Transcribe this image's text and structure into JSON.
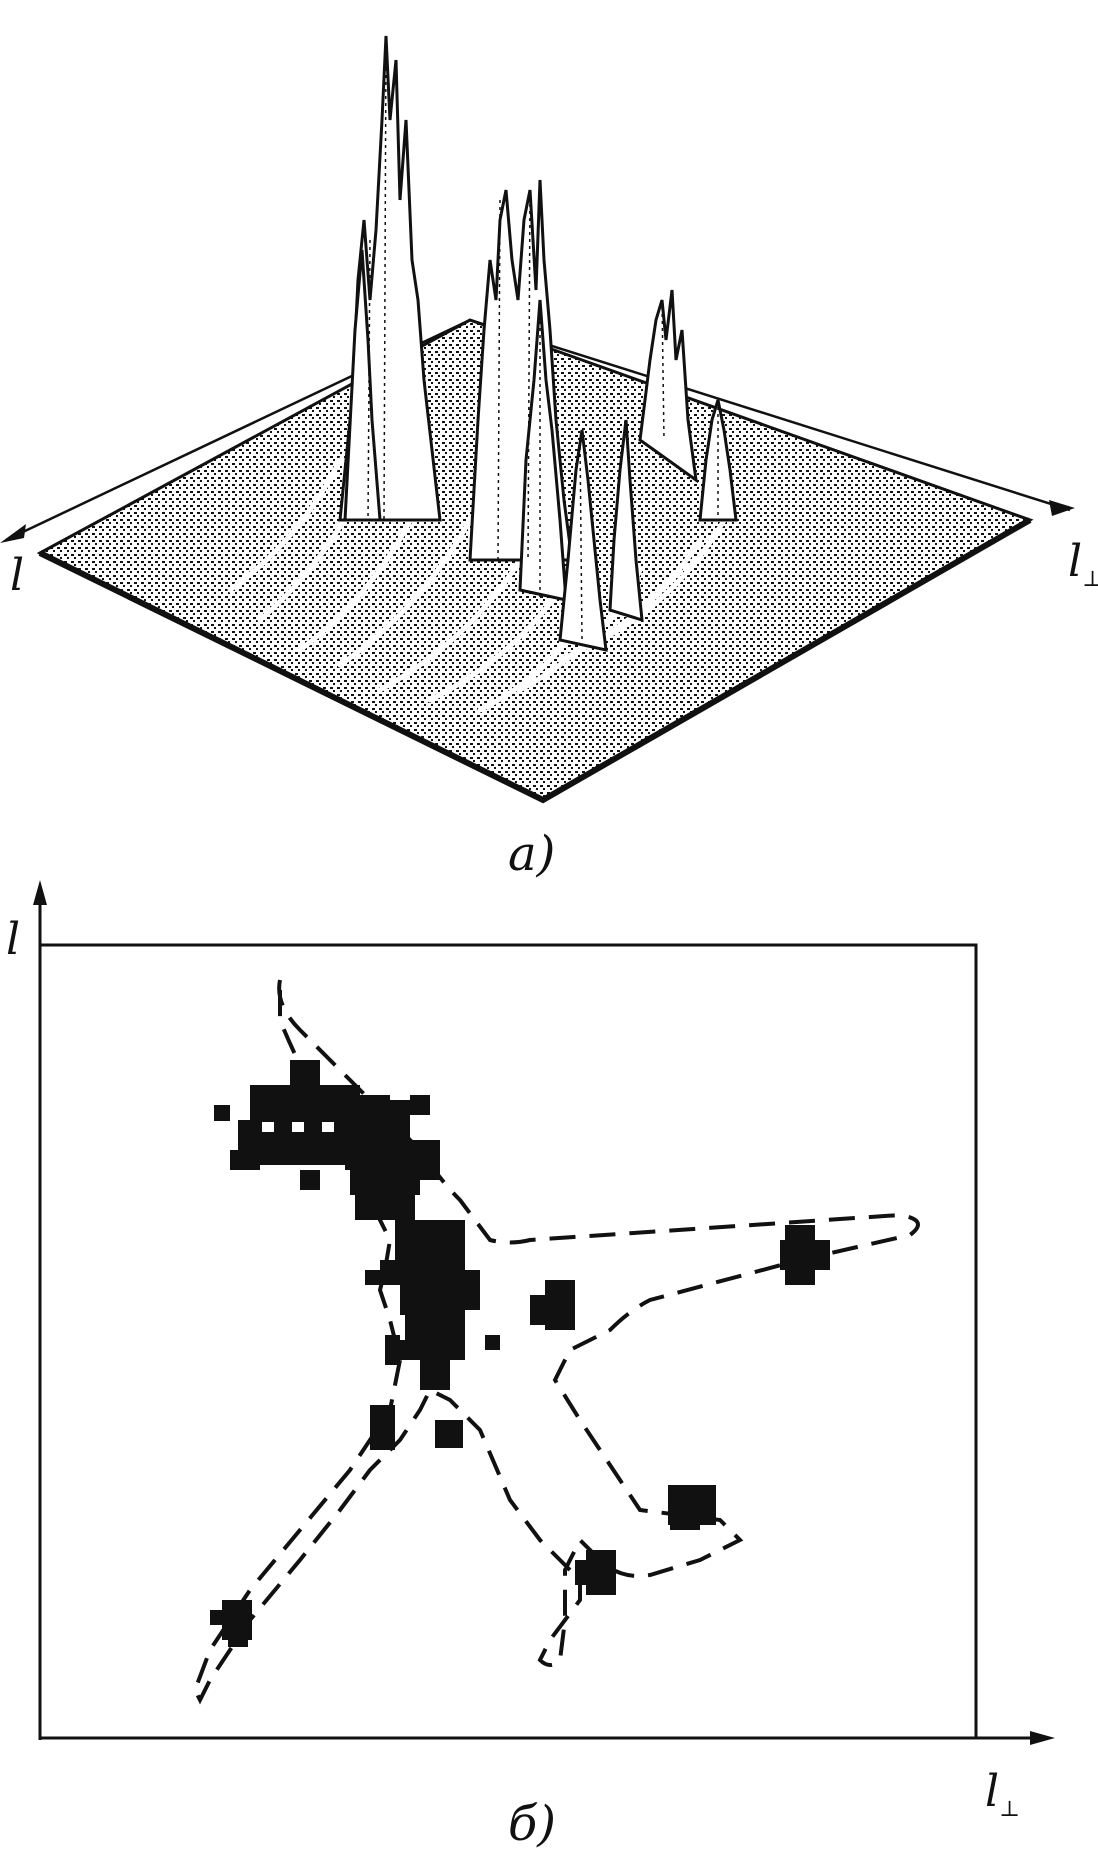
{
  "figure_a": {
    "caption": "а)",
    "axis_l": "l",
    "axis_lperp_main": "l",
    "axis_lperp_sub": "⊥"
  },
  "figure_b": {
    "caption": "б)",
    "axis_l": "l",
    "axis_lperp_main": "l",
    "axis_lperp_sub": "⊥"
  },
  "colors": {
    "ink": "#111111",
    "paper": "#ffffff"
  }
}
